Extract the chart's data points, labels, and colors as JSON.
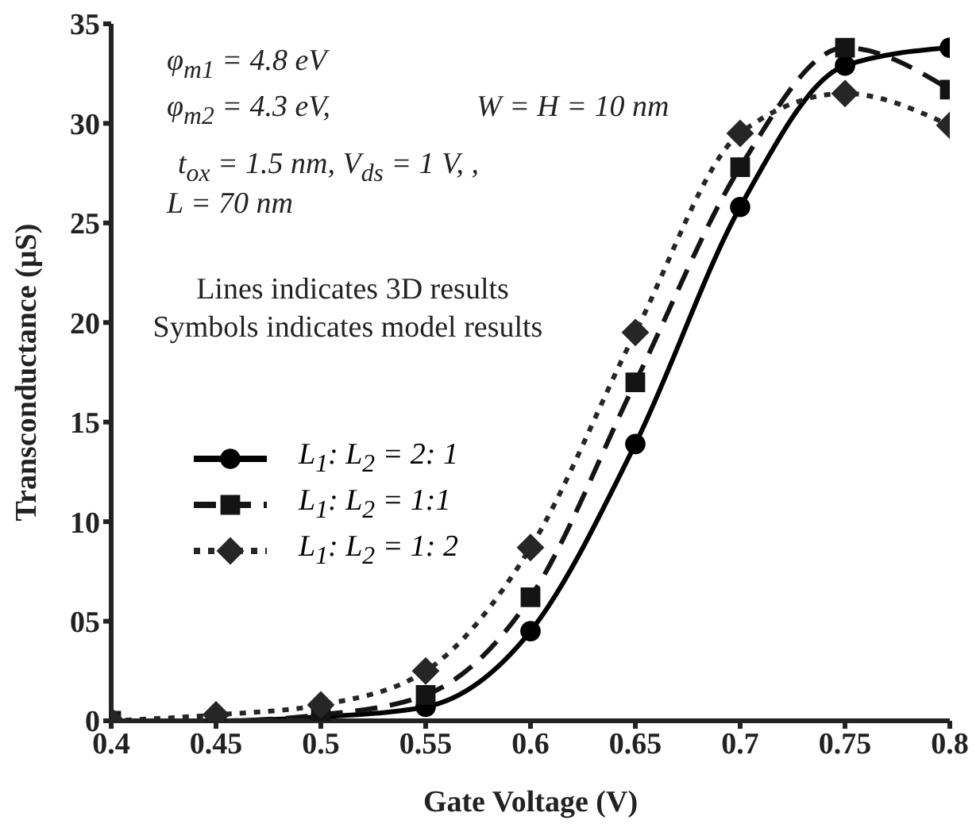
{
  "chart_data": {
    "type": "line",
    "xlabel": "Gate Voltage (V)",
    "ylabel": "Transconductance (µS)",
    "x": [
      0.4,
      0.45,
      0.5,
      0.55,
      0.6,
      0.65,
      0.7,
      0.75,
      0.8
    ],
    "xlim": [
      0.4,
      0.8
    ],
    "xticks": [
      0.4,
      0.45,
      0.5,
      0.55,
      0.6,
      0.65,
      0.7,
      0.75,
      0.8
    ],
    "ylim": [
      0,
      35
    ],
    "yticks": [
      {
        "value": 0,
        "label": "0"
      },
      {
        "value": 5,
        "label": "05"
      },
      {
        "value": 10,
        "label": "10"
      },
      {
        "value": 15,
        "label": "15"
      },
      {
        "value": 20,
        "label": "20"
      },
      {
        "value": 25,
        "label": "25"
      },
      {
        "value": 30,
        "label": "30"
      },
      {
        "value": 35,
        "label": "35"
      }
    ],
    "grid": false,
    "legend": "left",
    "series": [
      {
        "name": "L$_{1}$: L$_{2}$ = 2: 1",
        "color": "#000000",
        "marker": "circle",
        "line_style": "solid",
        "values": [
          0,
          0,
          0.2,
          0.7,
          4.5,
          13.9,
          25.8,
          32.9,
          33.8
        ]
      },
      {
        "name": "L$_{1}$: L$_{2}$ = 1:1",
        "color": "#141414",
        "marker": "square",
        "line_style": "dashed",
        "values": [
          0,
          0,
          0.3,
          1.3,
          6.2,
          17,
          27.8,
          33.8,
          31.7
        ]
      },
      {
        "name": "L$_{1}$: L$_{2}$ = 1: 2",
        "color": "#262626",
        "marker": "diamond",
        "line_style": "dotted",
        "values": [
          0,
          0.3,
          0.8,
          2.5,
          8.7,
          19.5,
          29.5,
          31.5,
          29.9
        ]
      }
    ],
    "annotations": [
      "φ$_{m1}$ = 4.8 eV",
      "φ$_{m2}$ = 4.3 eV,",
      "W = H = 10 nm",
      "t$_{ox}$ = 1.5  nm, V$_{ds}$ = 1 V, ,",
      "L = 70 nm",
      "Lines indicates 3D results",
      "Symbols indicates model results"
    ]
  }
}
